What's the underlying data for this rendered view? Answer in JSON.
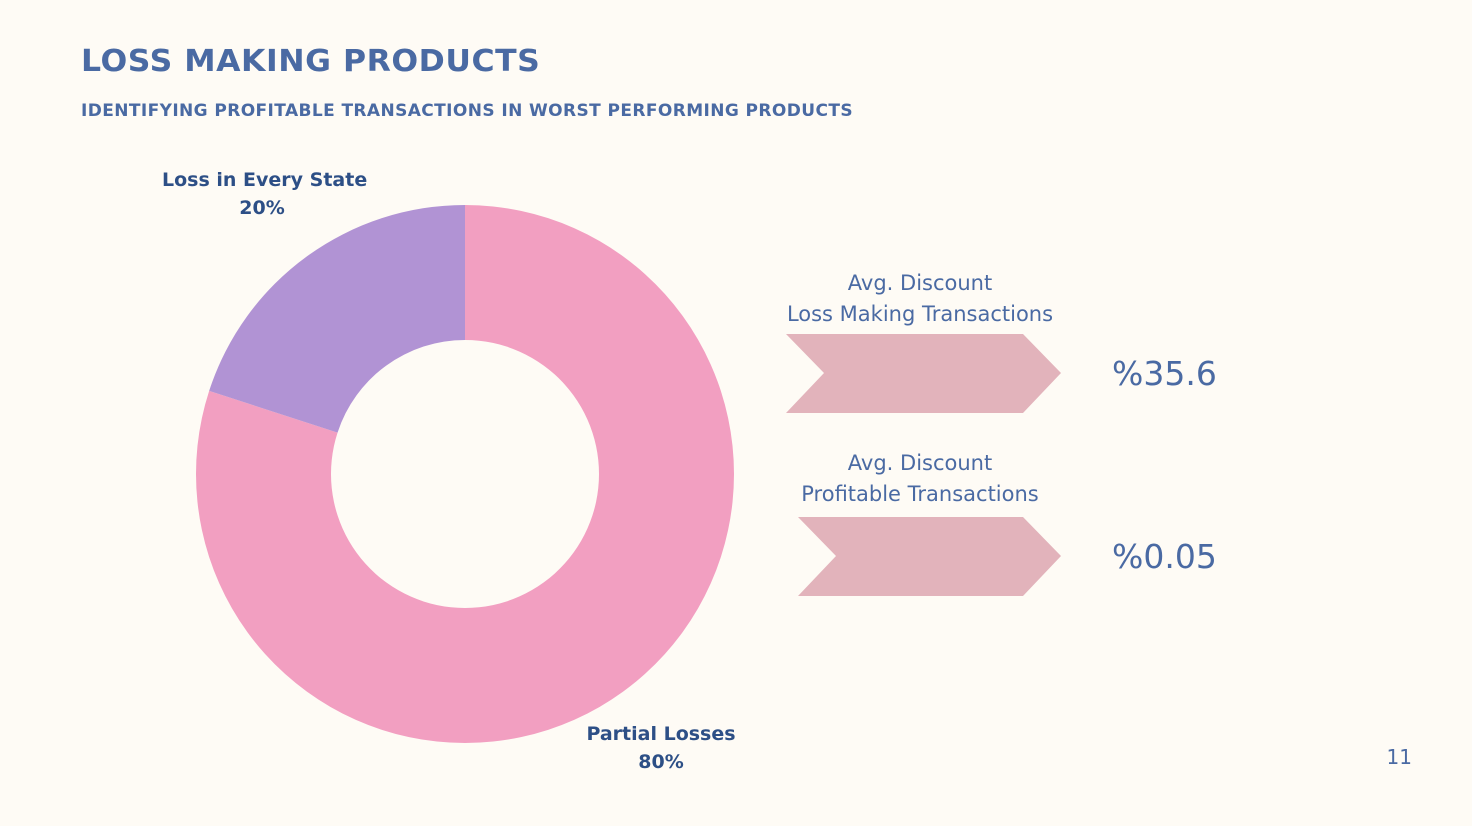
{
  "slide": {
    "title": "LOSS MAKING PRODUCTS",
    "subtitle": "IDENTIFYING PROFITABLE TRANSACTIONS IN WORST PERFORMING PRODUCTS",
    "page_number": "11",
    "background": "#fefbf5",
    "text_color": "#4a6aa3"
  },
  "chart_data": {
    "type": "pie",
    "donut": true,
    "slices": [
      {
        "name": "Partial Losses",
        "value": 80,
        "label": "80%",
        "color": "#f29fc1"
      },
      {
        "name": "Loss in Every State",
        "value": 20,
        "label": "20%",
        "color": "#b193d4"
      }
    ]
  },
  "stats": [
    {
      "caption_line1": "Avg. Discount",
      "caption_line2": "Loss Making Transactions",
      "value": "%35.6",
      "arrow_color": "#e2b3bb"
    },
    {
      "caption_line1": "Avg. Discount",
      "caption_line2": "Profitable Transactions",
      "value": "%0.05",
      "arrow_color": "#e2b3bb"
    }
  ]
}
